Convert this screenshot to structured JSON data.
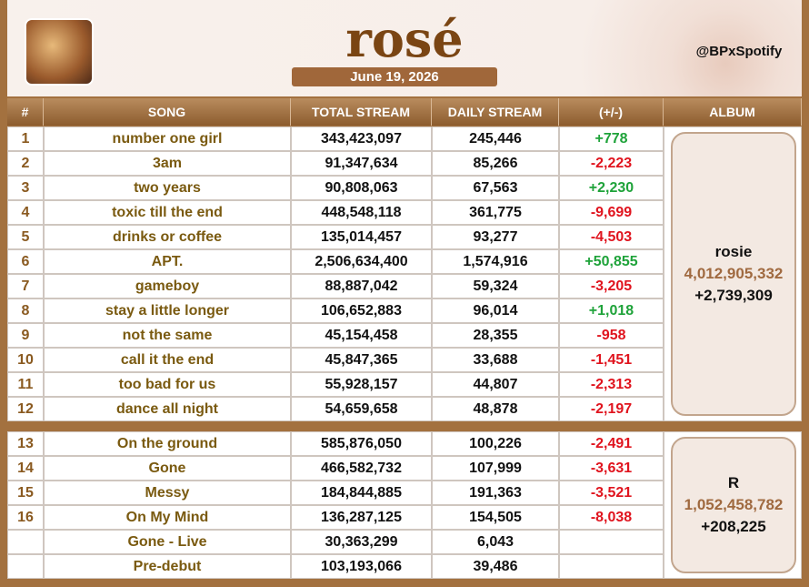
{
  "header": {
    "title": "rosé",
    "date": "June 19, 2026",
    "handle": "@BPxSpotify"
  },
  "table": {
    "columns": [
      "#",
      "SONG",
      "TOTAL STREAM",
      "DAILY STREAM",
      "(+/-)",
      "ALBUM"
    ],
    "groups": [
      {
        "rows": [
          [
            "1",
            "number one girl",
            "343,423,097",
            "245,446",
            "+778"
          ],
          [
            "2",
            "3am",
            "91,347,634",
            "85,266",
            "-2,223"
          ],
          [
            "3",
            "two years",
            "90,808,063",
            "67,563",
            "+2,230"
          ],
          [
            "4",
            "toxic till the end",
            "448,548,118",
            "361,775",
            "-9,699"
          ],
          [
            "5",
            "drinks or coffee",
            "135,014,457",
            "93,277",
            "-4,503"
          ],
          [
            "6",
            "APT.",
            "2,506,634,400",
            "1,574,916",
            "+50,855"
          ],
          [
            "7",
            "gameboy",
            "88,887,042",
            "59,324",
            "-3,205"
          ],
          [
            "8",
            "stay a little longer",
            "106,652,883",
            "96,014",
            "+1,018"
          ],
          [
            "9",
            "not the same",
            "45,154,458",
            "28,355",
            "-958"
          ],
          [
            "10",
            "call it the end",
            "45,847,365",
            "33,688",
            "-1,451"
          ],
          [
            "11",
            "too bad for us",
            "55,928,157",
            "44,807",
            "-2,313"
          ],
          [
            "12",
            "dance all night",
            "54,659,658",
            "48,878",
            "-2,197"
          ]
        ],
        "album": {
          "name": "rosie",
          "total_stream": "4,012,905,332",
          "daily_stream": "+2,739,309"
        }
      },
      {
        "rows": [
          [
            "13",
            "On the ground",
            "585,876,050",
            "100,226",
            "-2,491"
          ],
          [
            "14",
            "Gone",
            "466,582,732",
            "107,999",
            "-3,631"
          ],
          [
            "15",
            "Messy",
            "184,844,885",
            "191,363",
            "-3,521"
          ],
          [
            "16",
            "On My Mind",
            "136,287,125",
            "154,505",
            "-8,038"
          ],
          [
            null,
            "Gone - Live",
            "30,363,299",
            "6,043",
            null
          ],
          [
            null,
            "Pre-debut",
            "103,193,066",
            "39,486",
            null
          ]
        ],
        "album": {
          "name": "R",
          "total_stream": "1,052,458,782",
          "daily_stream": "+208,225"
        }
      }
    ]
  }
}
